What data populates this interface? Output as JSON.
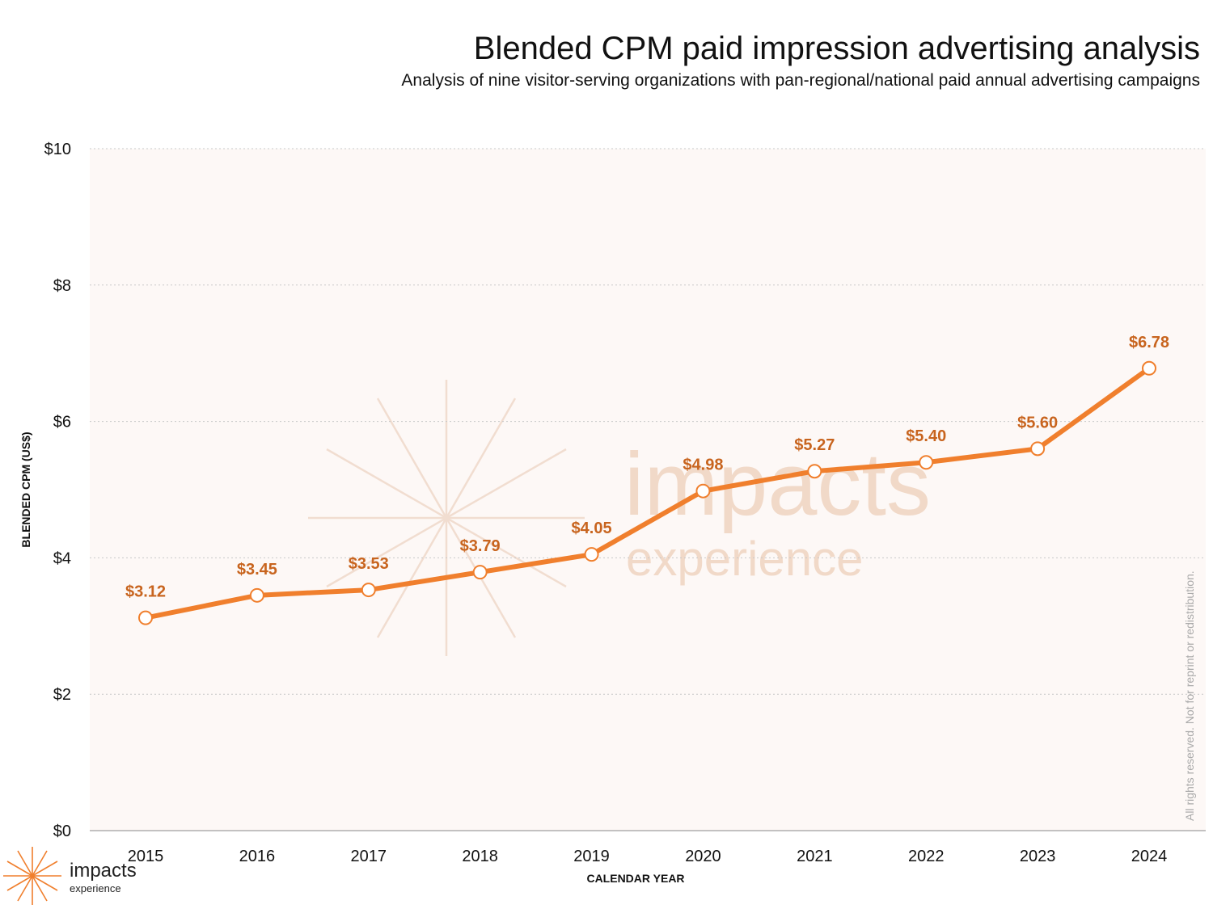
{
  "header": {
    "title": "Blended CPM paid impression advertising analysis",
    "subtitle": "Analysis of nine visitor-serving organizations with pan-regional/national paid annual advertising campaigns"
  },
  "chart_data": {
    "type": "line",
    "title": "Blended CPM paid impression advertising analysis",
    "xlabel": "CALENDAR YEAR",
    "ylabel": "BLENDED CPM (US$)",
    "ylim": [
      0,
      10
    ],
    "yticks": [
      0,
      2,
      4,
      6,
      8,
      10
    ],
    "ytick_labels": [
      "$0",
      "$2",
      "$4",
      "$6",
      "$8",
      "$10"
    ],
    "grid": true,
    "categories": [
      "2015",
      "2016",
      "2017",
      "2018",
      "2019",
      "2020",
      "2021",
      "2022",
      "2023",
      "2024"
    ],
    "series": [
      {
        "name": "Blended CPM",
        "values": [
          3.12,
          3.45,
          3.53,
          3.79,
          4.05,
          4.98,
          5.27,
          5.4,
          5.6,
          6.78
        ],
        "labels": [
          "$3.12",
          "$3.45",
          "$3.53",
          "$3.79",
          "$4.05",
          "$4.98",
          "$5.27",
          "$5.40",
          "$5.60",
          "$6.78"
        ],
        "color": "#f07f2d",
        "label_color": "#c8641e"
      }
    ]
  },
  "watermark": {
    "line1": "impacts",
    "line2": "experience"
  },
  "copyright": "All rights reserved. Not for reprint or redistribution.",
  "logo": {
    "name": "impacts",
    "sub": "experience",
    "color": "#f07f2d"
  },
  "colors": {
    "plot_bg": "#fdf8f6",
    "grid": "#c8c8c8",
    "accent": "#f07f2d"
  }
}
